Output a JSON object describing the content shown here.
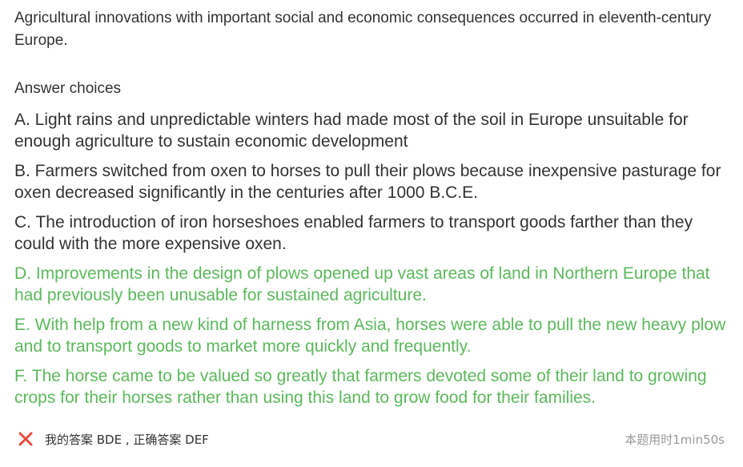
{
  "question": {
    "stem": "Agricultural innovations with important social and economic consequences occurred in eleventh-century Europe.",
    "choices_heading": "Answer choices"
  },
  "choices": [
    {
      "letter": "A",
      "text": "A. Light rains and unpredictable winters had made most of the soil in Europe unsuitable for enough agriculture to sustain economic development",
      "correct": false
    },
    {
      "letter": "B",
      "text": "B. Farmers switched from oxen to horses to pull their plows because inexpensive pasturage for oxen decreased significantly in the centuries after 1000 B.C.E.",
      "correct": false
    },
    {
      "letter": "C",
      "text": "C. The introduction of iron horseshoes enabled farmers to transport goods farther than they could with the more expensive oxen.",
      "correct": false
    },
    {
      "letter": "D",
      "text": "D. Improvements in the design of plows opened up vast areas of land in Northern Europe that had previously been unusable for sustained agriculture.",
      "correct": true
    },
    {
      "letter": "E",
      "text": "E. With help from a new kind of harness from Asia, horses were able to pull the new heavy plow and to transport goods to market more quickly and frequently.",
      "correct": true
    },
    {
      "letter": "F",
      "text": "F. The horse came to be valued so greatly that farmers devoted some of their land to growing crops for their horses rather than using this land to grow food for their families.",
      "correct": true
    }
  ],
  "result": {
    "icon": "x-mark-icon",
    "text": "我的答案 BDE , 正确答案 DEF",
    "wrong_color": "#e74c3c"
  },
  "timer": {
    "text": "本题用时1min50s"
  },
  "colors": {
    "correct": "#5cb85c",
    "text": "#333333",
    "muted": "#999999"
  }
}
